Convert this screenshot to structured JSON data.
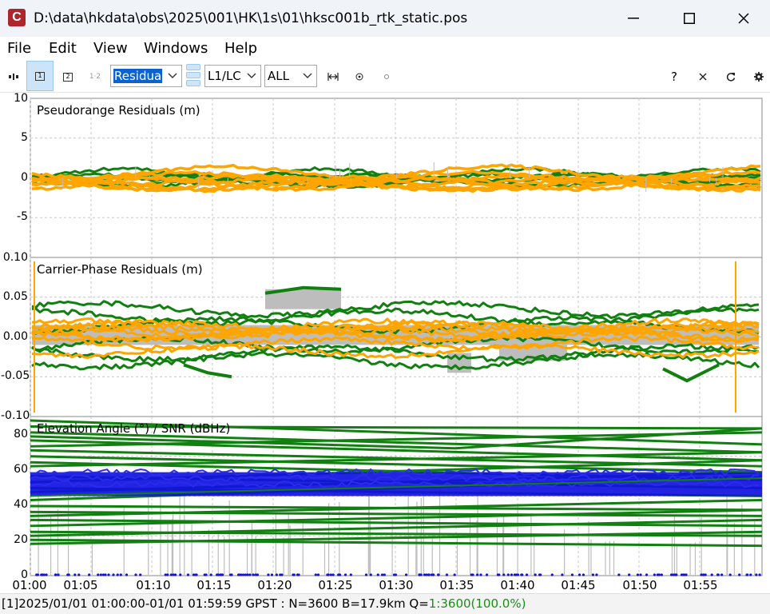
{
  "window": {
    "title": "D:\\data\\hkdata\\obs\\2025\\001\\HK\\1s\\01\\hksc001b_rtk_static.pos",
    "icon_letter": "C"
  },
  "menu": {
    "items": [
      "File",
      "Edit",
      "View",
      "Windows",
      "Help"
    ]
  },
  "toolbar": {
    "btn1": "1",
    "btn2": "2",
    "btn12": "1·2",
    "plot_type": "Residua",
    "freq": "L1/LC",
    "sat": "ALL",
    "help": "?"
  },
  "colors": {
    "green": "#118011",
    "orange": "#ffa500",
    "gray": "#bdbdbd",
    "blue": "#1010e0",
    "grid": "#c8c8c8"
  },
  "chart_data": [
    {
      "type": "scatter",
      "title": "Pseudorange Residuals (m)",
      "ylim": [
        -10,
        10
      ],
      "yticks": [
        "10",
        "5",
        "0",
        "-5"
      ],
      "series": [
        {
          "color": "green",
          "values_range": [
            -1.2,
            1.2
          ]
        },
        {
          "color": "orange",
          "values_range": [
            -2.0,
            2.0
          ]
        }
      ]
    },
    {
      "type": "scatter",
      "title": "Carrier-Phase Residuals (m)",
      "ylim": [
        -0.1,
        0.1
      ],
      "yticks": [
        "0.10",
        "0.05",
        "0.00",
        "-0.05",
        "-0.10"
      ],
      "series": [
        {
          "color": "green",
          "values_range": [
            -0.05,
            0.06
          ]
        },
        {
          "color": "orange",
          "values_range": [
            -0.02,
            0.03
          ]
        }
      ]
    },
    {
      "type": "scatter",
      "title": "Elevation Angle (°) / SNR (dBHz)",
      "ylim": [
        0,
        80
      ],
      "yticks": [
        "80",
        "60",
        "40",
        "20",
        "0"
      ],
      "series": [
        {
          "color": "green",
          "values_range": [
            15,
            78
          ]
        },
        {
          "color": "blue",
          "values_range": [
            40,
            52
          ]
        }
      ]
    }
  ],
  "xaxis": {
    "ticks": [
      "01:00",
      "01:05",
      "01:10",
      "01:15",
      "01:20",
      "01:25",
      "01:30",
      "01:35",
      "01:40",
      "01:45",
      "01:50",
      "01:55"
    ]
  },
  "status": {
    "prefix": "[1]2025/01/01 01:00:00-01/01 01:59:59 GPST : N=3600 B=17.9km Q=",
    "quality": "1:3600(100.0%)"
  }
}
